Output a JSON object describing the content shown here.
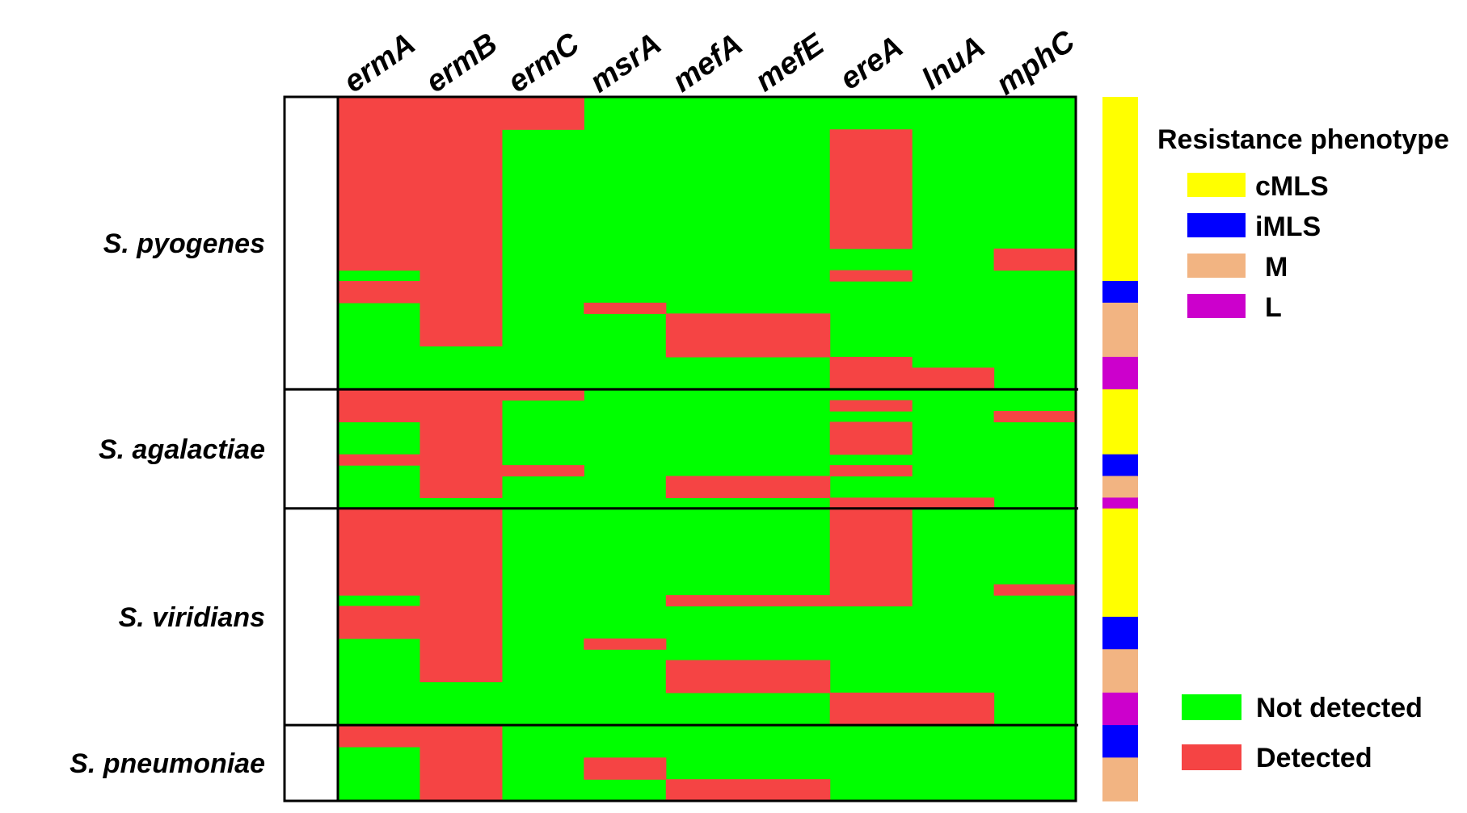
{
  "chart_data": {
    "type": "heatmap",
    "genes": [
      "ermA",
      "ermB",
      "ermC",
      "msrA",
      "mefA",
      "mefE",
      "ereA",
      "lnuA",
      "mphC"
    ],
    "species": [
      "S. pyogenes",
      "S. agalactiae",
      "S. viridians",
      "S. pneumoniae"
    ],
    "row_count": 65,
    "species_rows": [
      {
        "name": "S. pyogenes",
        "start": 0,
        "end": 27
      },
      {
        "name": "S. agalactiae",
        "start": 27,
        "end": 38
      },
      {
        "name": "S. viridians",
        "start": 38,
        "end": 58
      },
      {
        "name": "S. pneumoniae",
        "start": 58,
        "end": 65
      }
    ],
    "detected_cells": [
      {
        "gene": "ermA",
        "rows": [
          [
            0,
            16
          ],
          [
            17,
            19
          ],
          [
            27,
            30
          ],
          [
            33,
            34
          ],
          [
            38,
            46
          ],
          [
            47,
            50
          ],
          [
            58,
            60
          ]
        ]
      },
      {
        "gene": "ermB",
        "rows": [
          [
            0,
            23
          ],
          [
            27,
            37
          ],
          [
            38,
            54
          ],
          [
            58,
            65
          ]
        ]
      },
      {
        "gene": "ermC",
        "rows": [
          [
            0,
            3
          ],
          [
            27,
            28
          ],
          [
            34,
            35
          ]
        ]
      },
      {
        "gene": "msrA",
        "rows": [
          [
            19,
            20
          ],
          [
            50,
            51
          ],
          [
            61,
            63
          ]
        ]
      },
      {
        "gene": "mefA",
        "rows": [
          [
            20,
            24
          ],
          [
            35,
            37
          ],
          [
            46,
            47
          ],
          [
            52,
            55
          ],
          [
            63,
            65
          ]
        ]
      },
      {
        "gene": "mefE",
        "rows": [
          [
            20,
            24
          ],
          [
            35,
            37
          ],
          [
            46,
            47
          ],
          [
            52,
            55
          ],
          [
            63,
            65
          ]
        ]
      },
      {
        "gene": "ereA",
        "rows": [
          [
            3,
            14
          ],
          [
            16,
            17
          ],
          [
            24,
            27
          ],
          [
            28,
            29
          ],
          [
            30,
            33
          ],
          [
            34,
            35
          ],
          [
            37,
            38
          ],
          [
            38,
            47
          ],
          [
            55,
            58
          ]
        ]
      },
      {
        "gene": "lnuA",
        "rows": [
          [
            25,
            27
          ],
          [
            37,
            38
          ],
          [
            55,
            58
          ]
        ]
      },
      {
        "gene": "mphC",
        "rows": [
          [
            14,
            16
          ],
          [
            29,
            30
          ],
          [
            45,
            46
          ]
        ]
      }
    ],
    "phenotype_bar": [
      {
        "phenotype": "cMLS",
        "start": 0,
        "end": 17
      },
      {
        "phenotype": "iMLS",
        "start": 17,
        "end": 19
      },
      {
        "phenotype": "M",
        "start": 19,
        "end": 24
      },
      {
        "phenotype": "L",
        "start": 24,
        "end": 27
      },
      {
        "phenotype": "cMLS",
        "start": 27,
        "end": 33
      },
      {
        "phenotype": "iMLS",
        "start": 33,
        "end": 35
      },
      {
        "phenotype": "M",
        "start": 35,
        "end": 37
      },
      {
        "phenotype": "L",
        "start": 37,
        "end": 38
      },
      {
        "phenotype": "cMLS",
        "start": 38,
        "end": 48
      },
      {
        "phenotype": "iMLS",
        "start": 48,
        "end": 51
      },
      {
        "phenotype": "M",
        "start": 51,
        "end": 55
      },
      {
        "phenotype": "L",
        "start": 55,
        "end": 58
      },
      {
        "phenotype": "iMLS",
        "start": 58,
        "end": 61
      },
      {
        "phenotype": "M",
        "start": 61,
        "end": 65
      }
    ],
    "legend_phenotype": {
      "title": "Resistance phenotype",
      "items": [
        {
          "label": "cMLS",
          "color": "#ffff00"
        },
        {
          "label": "iMLS",
          "color": "#0000ff"
        },
        {
          "label": "M",
          "color": "#f2b482"
        },
        {
          "label": "L",
          "color": "#cc00cc"
        }
      ]
    },
    "legend_detection": {
      "items": [
        {
          "label": "Not detected",
          "color": "#00ff00"
        },
        {
          "label": "Detected",
          "color": "#f54444"
        }
      ]
    },
    "colors": {
      "not_detected": "#00ff00",
      "detected": "#f54444",
      "cMLS": "#ffff00",
      "iMLS": "#0000ff",
      "M": "#f2b482",
      "L": "#cc00cc"
    }
  }
}
